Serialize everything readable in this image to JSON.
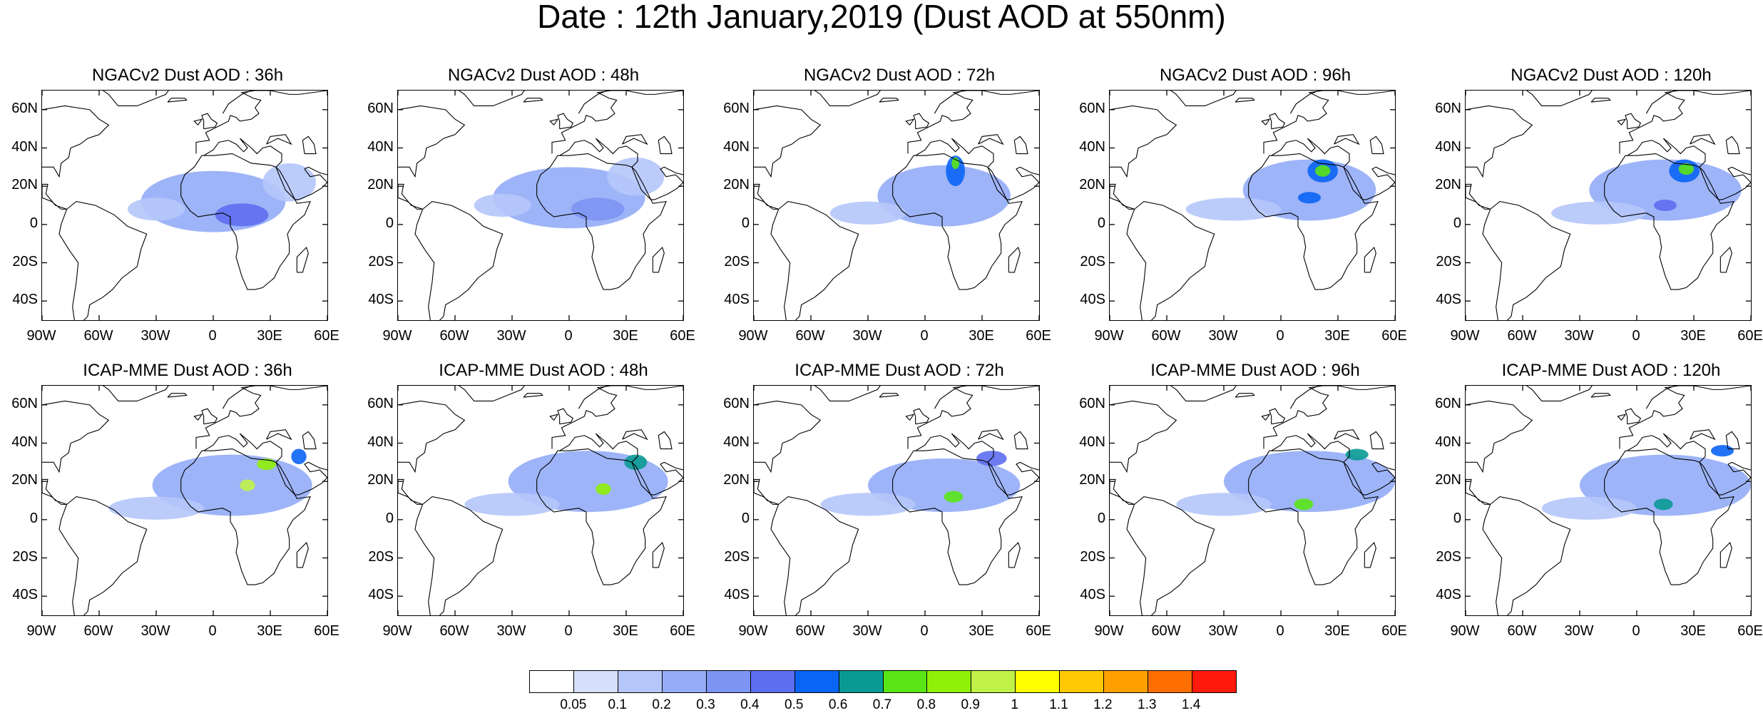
{
  "title": "Date : 12th January,2019 (Dust AOD at 550nm)",
  "panels": [
    {
      "label": "NGACv2 Dust AOD : 36h",
      "model": "NGACv2",
      "lead": "36h",
      "plumes": [
        {
          "lon": 0,
          "lat": 12,
          "rx": 38,
          "ry": 16,
          "level": 3
        },
        {
          "lon": 15,
          "lat": 5,
          "rx": 14,
          "ry": 6,
          "level": 5
        },
        {
          "lon": -30,
          "lat": 8,
          "rx": 15,
          "ry": 6,
          "level": 2
        },
        {
          "lon": 40,
          "lat": 22,
          "rx": 14,
          "ry": 10,
          "level": 2
        }
      ]
    },
    {
      "label": "NGACv2 Dust AOD : 48h",
      "model": "NGACv2",
      "lead": "48h",
      "plumes": [
        {
          "lon": 0,
          "lat": 14,
          "rx": 40,
          "ry": 16,
          "level": 3
        },
        {
          "lon": 15,
          "lat": 8,
          "rx": 14,
          "ry": 6,
          "level": 4
        },
        {
          "lon": -35,
          "lat": 10,
          "rx": 15,
          "ry": 6,
          "level": 2
        },
        {
          "lon": 35,
          "lat": 25,
          "rx": 15,
          "ry": 10,
          "level": 2
        }
      ]
    },
    {
      "label": "NGACv2 Dust AOD : 72h",
      "model": "NGACv2",
      "lead": "72h",
      "plumes": [
        {
          "lon": 10,
          "lat": 15,
          "rx": 35,
          "ry": 16,
          "level": 3
        },
        {
          "lon": 16,
          "lat": 28,
          "rx": 5,
          "ry": 8,
          "level": 6
        },
        {
          "lon": 16,
          "lat": 32,
          "rx": 2,
          "ry": 3,
          "level": 8
        },
        {
          "lon": -30,
          "lat": 6,
          "rx": 20,
          "ry": 6,
          "level": 2
        }
      ]
    },
    {
      "label": "NGACv2 Dust AOD : 96h",
      "model": "NGACv2",
      "lead": "96h",
      "plumes": [
        {
          "lon": 15,
          "lat": 18,
          "rx": 35,
          "ry": 16,
          "level": 3
        },
        {
          "lon": 22,
          "lat": 28,
          "rx": 8,
          "ry": 6,
          "level": 6
        },
        {
          "lon": 22,
          "lat": 28,
          "rx": 4,
          "ry": 3,
          "level": 8
        },
        {
          "lon": 15,
          "lat": 14,
          "rx": 6,
          "ry": 3,
          "level": 6
        },
        {
          "lon": -25,
          "lat": 8,
          "rx": 25,
          "ry": 6,
          "level": 2
        }
      ]
    },
    {
      "label": "NGACv2 Dust AOD : 120h",
      "model": "NGACv2",
      "lead": "120h",
      "plumes": [
        {
          "lon": 15,
          "lat": 18,
          "rx": 40,
          "ry": 16,
          "level": 3
        },
        {
          "lon": 25,
          "lat": 28,
          "rx": 8,
          "ry": 6,
          "level": 6
        },
        {
          "lon": 26,
          "lat": 29,
          "rx": 4,
          "ry": 3,
          "level": 8
        },
        {
          "lon": 15,
          "lat": 10,
          "rx": 6,
          "ry": 3,
          "level": 5
        },
        {
          "lon": -20,
          "lat": 6,
          "rx": 25,
          "ry": 6,
          "level": 2
        }
      ]
    }
  ],
  "panels_icap": [
    {
      "label": "ICAP-MME Dust AOD : 36h",
      "model": "ICAP-MME",
      "lead": "36h",
      "plumes": [
        {
          "lon": 10,
          "lat": 18,
          "rx": 42,
          "ry": 16,
          "level": 3
        },
        {
          "lon": 28,
          "lat": 29,
          "rx": 5,
          "ry": 3,
          "level": 9
        },
        {
          "lon": 18,
          "lat": 18,
          "rx": 4,
          "ry": 3,
          "level": 10
        },
        {
          "lon": 45,
          "lat": 33,
          "rx": 4,
          "ry": 4,
          "level": 6
        },
        {
          "lon": -30,
          "lat": 6,
          "rx": 25,
          "ry": 6,
          "level": 2
        }
      ]
    },
    {
      "label": "ICAP-MME Dust AOD : 48h",
      "model": "ICAP-MME",
      "lead": "48h",
      "plumes": [
        {
          "lon": 10,
          "lat": 20,
          "rx": 42,
          "ry": 16,
          "level": 3
        },
        {
          "lon": 35,
          "lat": 30,
          "rx": 6,
          "ry": 4,
          "level": 7
        },
        {
          "lon": 18,
          "lat": 16,
          "rx": 4,
          "ry": 3,
          "level": 9
        },
        {
          "lon": -30,
          "lat": 8,
          "rx": 25,
          "ry": 6,
          "level": 2
        }
      ]
    },
    {
      "label": "ICAP-MME Dust AOD : 72h",
      "model": "ICAP-MME",
      "lead": "72h",
      "plumes": [
        {
          "lon": 10,
          "lat": 18,
          "rx": 40,
          "ry": 14,
          "level": 3
        },
        {
          "lon": 15,
          "lat": 12,
          "rx": 5,
          "ry": 3,
          "level": 8
        },
        {
          "lon": 35,
          "lat": 32,
          "rx": 8,
          "ry": 4,
          "level": 5
        },
        {
          "lon": -30,
          "lat": 8,
          "rx": 25,
          "ry": 6,
          "level": 2
        }
      ]
    },
    {
      "label": "ICAP-MME Dust AOD : 96h",
      "model": "ICAP-MME",
      "lead": "96h",
      "plumes": [
        {
          "lon": 15,
          "lat": 20,
          "rx": 45,
          "ry": 16,
          "level": 3
        },
        {
          "lon": 12,
          "lat": 8,
          "rx": 5,
          "ry": 3,
          "level": 8
        },
        {
          "lon": 40,
          "lat": 34,
          "rx": 6,
          "ry": 3,
          "level": 7
        },
        {
          "lon": -30,
          "lat": 8,
          "rx": 25,
          "ry": 6,
          "level": 2
        }
      ]
    },
    {
      "label": "ICAP-MME Dust AOD : 120h",
      "model": "ICAP-MME",
      "lead": "120h",
      "plumes": [
        {
          "lon": 15,
          "lat": 18,
          "rx": 45,
          "ry": 16,
          "level": 3
        },
        {
          "lon": 14,
          "lat": 8,
          "rx": 5,
          "ry": 3,
          "level": 7
        },
        {
          "lon": 45,
          "lat": 36,
          "rx": 6,
          "ry": 3,
          "level": 6
        },
        {
          "lon": -25,
          "lat": 6,
          "rx": 25,
          "ry": 6,
          "level": 2
        }
      ]
    }
  ],
  "map_extent": {
    "lon": [
      -90,
      60
    ],
    "lat": [
      -50,
      70
    ]
  },
  "x_ticks": [
    {
      "lon": -90,
      "label": "90W"
    },
    {
      "lon": -60,
      "label": "60W"
    },
    {
      "lon": -30,
      "label": "30W"
    },
    {
      "lon": 0,
      "label": "0"
    },
    {
      "lon": 30,
      "label": "30E"
    },
    {
      "lon": 60,
      "label": "60E"
    }
  ],
  "y_ticks": [
    {
      "lat": 60,
      "label": "60N"
    },
    {
      "lat": 40,
      "label": "40N"
    },
    {
      "lat": 20,
      "label": "20N"
    },
    {
      "lat": 0,
      "label": "0"
    },
    {
      "lat": -20,
      "label": "20S"
    },
    {
      "lat": -40,
      "label": "40S"
    }
  ],
  "colorbar": {
    "labels": [
      "0.05",
      "0.1",
      "0.2",
      "0.3",
      "0.4",
      "0.5",
      "0.6",
      "0.7",
      "0.8",
      "0.9",
      "1",
      "1.1",
      "1.2",
      "1.3",
      "1.4"
    ],
    "colors": [
      "#ffffff",
      "#d6e0fb",
      "#b5c6f9",
      "#94acf7",
      "#7c95f2",
      "#5e6ef0",
      "#0a64f4",
      "#0a9a94",
      "#59e516",
      "#8ff008",
      "#c0f248",
      "#ffff00",
      "#ffc800",
      "#ffa000",
      "#ff6e00",
      "#ff1a0e"
    ]
  }
}
